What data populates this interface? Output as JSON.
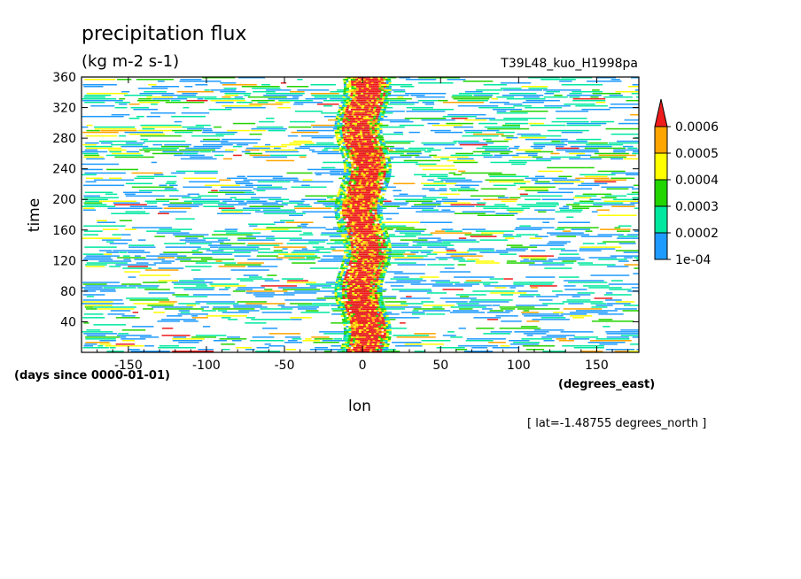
{
  "chart_data": {
    "type": "heatmap",
    "title": "precipitation flux",
    "units": "(kg m-2 s-1)",
    "experiment": "T39L48_kuo_H1998pa",
    "xlabel": "lon",
    "xunits": "(degrees_east)",
    "ylabel": "time",
    "yunits": "(days since 0000-01-01)",
    "note": "[ lat=-1.48755 degrees_north ]",
    "xlim": [
      -180,
      177
    ],
    "ylim": [
      0,
      360
    ],
    "xticks": [
      -150,
      -100,
      -50,
      0,
      50,
      100,
      150
    ],
    "xtick_labels": [
      "-150",
      "-100",
      "-50",
      "0",
      "50",
      "100",
      "150"
    ],
    "yticks": [
      40,
      80,
      120,
      160,
      200,
      240,
      280,
      320,
      360
    ],
    "ytick_labels": [
      "40",
      "80",
      "120",
      "160",
      "200",
      "240",
      "280",
      "320",
      "360"
    ],
    "colorbar": {
      "levels": [
        "1e-04",
        "0.0002",
        "0.0003",
        "0.0004",
        "0.0005",
        "0.0006"
      ],
      "colors": [
        "#1e9bff",
        "#00e8a0",
        "#22d400",
        "#ffff00",
        "#ffa500",
        "#ee1c1c"
      ]
    },
    "features": {
      "max_band_center_lon": 0,
      "max_band_halfwidth_deg": 15,
      "background_value": "< 1e-04"
    }
  }
}
